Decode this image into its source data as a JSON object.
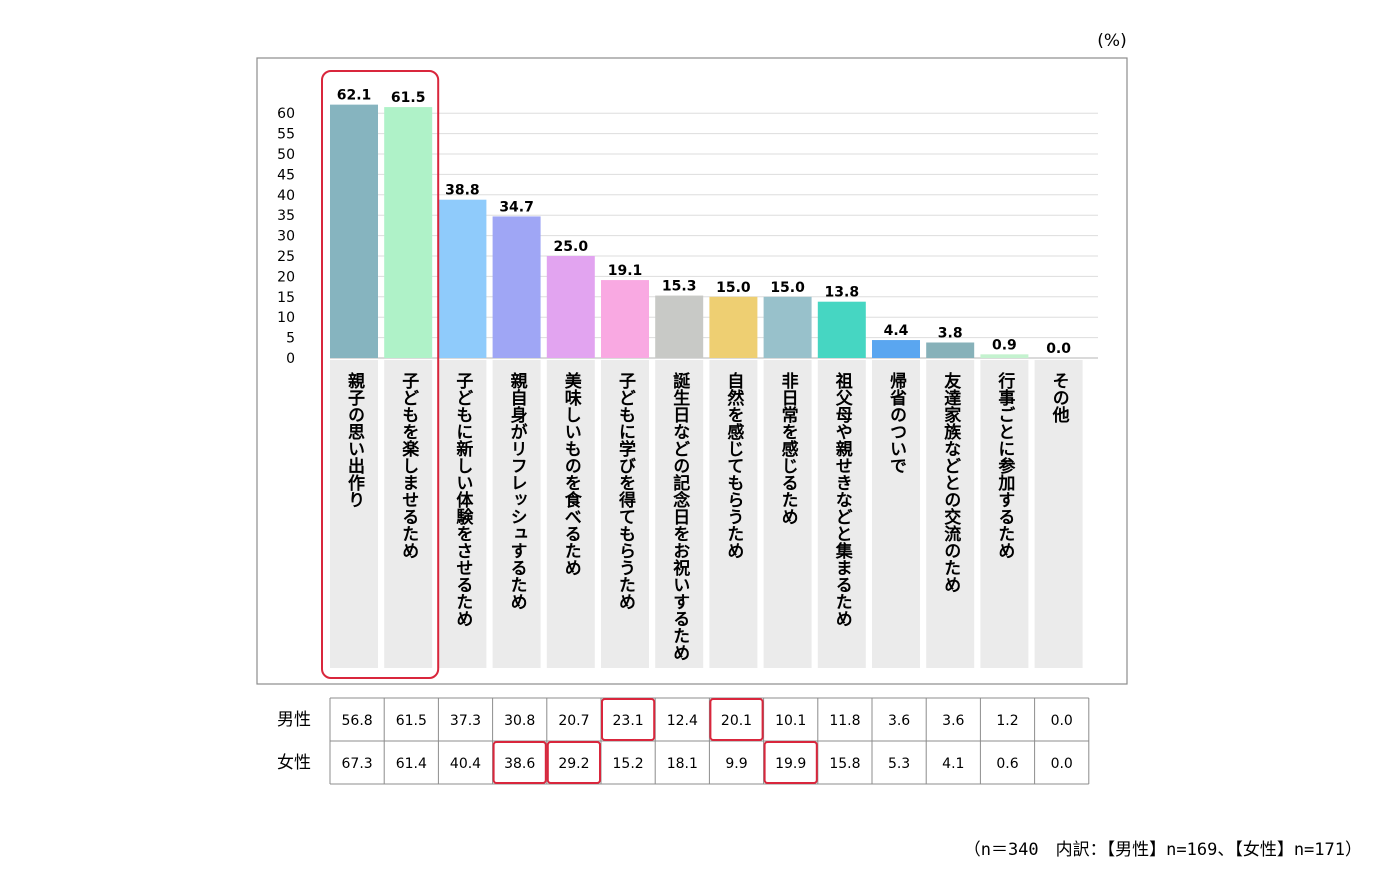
{
  "chart_data": {
    "type": "bar",
    "unit_label": "(%)",
    "y_ticks": [
      "0",
      "5",
      "10",
      "15",
      "20",
      "25",
      "30",
      "35",
      "40",
      "45",
      "50",
      "55",
      "60"
    ],
    "ylim": [
      0,
      65
    ],
    "grid": true,
    "categories": [
      "親子の思い出作り",
      "子どもを楽しませるため",
      "子どもに新しい体験をさせるため",
      "親自身がリフレッシュするため",
      "美味しいものを食べるため",
      "子どもに学びを得てもらうため",
      "誕生日などの記念日をお祝いするため",
      "自然を感じてもらうため",
      "非日常を感じるため",
      "祖父母や親せきなどと集まるため",
      "帰省のついで",
      "友達家族などとの交流のため",
      "行事ごとに参加するため",
      "その他"
    ],
    "values": [
      62.1,
      61.5,
      38.8,
      34.7,
      25.0,
      19.1,
      15.3,
      15.0,
      15.0,
      13.8,
      4.4,
      3.8,
      0.9,
      0.0
    ],
    "value_labels": [
      "62.1",
      "61.5",
      "38.8",
      "34.7",
      "25.0",
      "19.1",
      "15.3",
      "15.0",
      "15.0",
      "13.8",
      "4.4",
      "3.8",
      "0.9",
      "0.0"
    ],
    "bar_colors": [
      "#86b4bf",
      "#aff2c8",
      "#8fcbfb",
      "#9fa6f5",
      "#e2a4f0",
      "#f9a9e2",
      "#c8c9c6",
      "#eecf72",
      "#98c1cb",
      "#46d6c2",
      "#5aa6f0",
      "#87b1b9",
      "#c4f2cf",
      "#ffffff"
    ],
    "highlight_categories": [
      0,
      1
    ],
    "table": {
      "row_labels": [
        "男性",
        "女性"
      ],
      "rows": [
        [
          "56.8",
          "61.5",
          "37.3",
          "30.8",
          "20.7",
          "23.1",
          "12.4",
          "20.1",
          "10.1",
          "11.8",
          "3.6",
          "3.6",
          "1.2",
          "0.0"
        ],
        [
          "67.3",
          "61.4",
          "40.4",
          "38.6",
          "29.2",
          "15.2",
          "18.1",
          "9.9",
          "19.9",
          "15.8",
          "5.3",
          "4.1",
          "0.6",
          "0.0"
        ]
      ],
      "highlighted_cells": [
        [
          0,
          5
        ],
        [
          0,
          7
        ],
        [
          1,
          3
        ],
        [
          1,
          4
        ],
        [
          1,
          8
        ]
      ]
    },
    "note": "（n＝340　内訳：【男性】n=169、【女性】n=171）",
    "highlight_color": "#d9263c"
  }
}
